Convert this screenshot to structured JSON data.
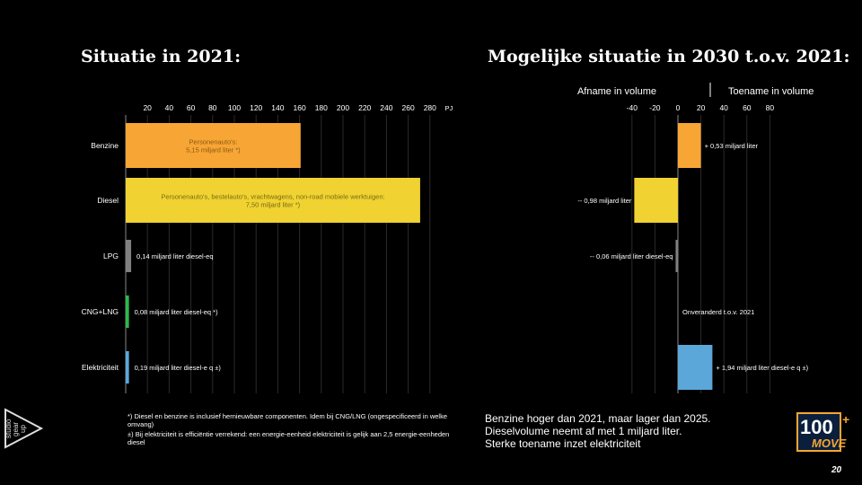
{
  "left_title": "Situatie in 2021:",
  "right_title": "Mogelijke situatie in 2030 t.o.v. 2021:",
  "footnotes": [
    "*) Diesel en benzine is inclusief hernieuwbare componenten. Idem bij CNG/LNG  (ongespecificeerd in welke omvang)",
    "±) Bij elektriciteit is efficiëntie verrekend: een energie-eenheid elektriciteit is gelijk aan 2,5 energie-eenheden diesel"
  ],
  "summary": [
    "Benzine hoger dan 2021, maar lager dan 2025.",
    "Dieselvolume neemt af met 1 miljard liter.",
    "Sterke toename inzet elektriciteit"
  ],
  "logo_left_text": "studio gear up",
  "logo_right_text": "100 MOVE",
  "page_number": "20",
  "colors": {
    "benzine": "#F7A535",
    "diesel": "#F0D232",
    "lpg": "#808080",
    "cng": "#2DB84A",
    "elektriciteit": "#5BA7DA"
  },
  "chart_data": [
    {
      "type": "bar",
      "orientation": "horizontal",
      "title": "Situatie in 2021:",
      "unit": "PJ",
      "categories": [
        "Benzine",
        "Diesel",
        "LPG",
        "CNG+LNG",
        "Elektriciteit"
      ],
      "values": [
        161,
        271,
        5,
        3,
        3
      ],
      "labels": [
        "Personenauto's:\n5,15 miljard liter *)",
        "Personenauto's, bestelauto's, vrachtwagens, non-road mobiele werktuigen:\n7,50 miljard liter *)",
        "0,14 miljard liter diesel-eq",
        "0,08 miljard liter diesel-eq *)",
        "0,19 miljard liter diesel-e q ±)"
      ],
      "xticks": [
        20,
        40,
        60,
        80,
        100,
        120,
        140,
        160,
        180,
        200,
        220,
        240,
        260,
        280
      ],
      "xlim": [
        0,
        290
      ]
    },
    {
      "type": "bar",
      "orientation": "horizontal",
      "title": "Mogelijke situatie in 2030 t.o.v. 2021:",
      "axis_label_left": "Afname in volume",
      "axis_label_right": "Toename in volume",
      "categories": [
        "Benzine",
        "Diesel",
        "LPG",
        "CNG+LNG",
        "Elektriciteit"
      ],
      "values": [
        20,
        -38,
        -2,
        0,
        30
      ],
      "labels": [
        "+ 0,53 miljard liter",
        "-- 0,98 miljard liter",
        "-- 0,06 miljard liter diesel-eq",
        "Onveranderd t.o.v. 2021",
        "+ 1,94 miljard liter diesel-e q ±)"
      ],
      "xticks": [
        -40,
        -20,
        0,
        20,
        40,
        60,
        80
      ],
      "xlim": [
        -40,
        80
      ]
    }
  ]
}
